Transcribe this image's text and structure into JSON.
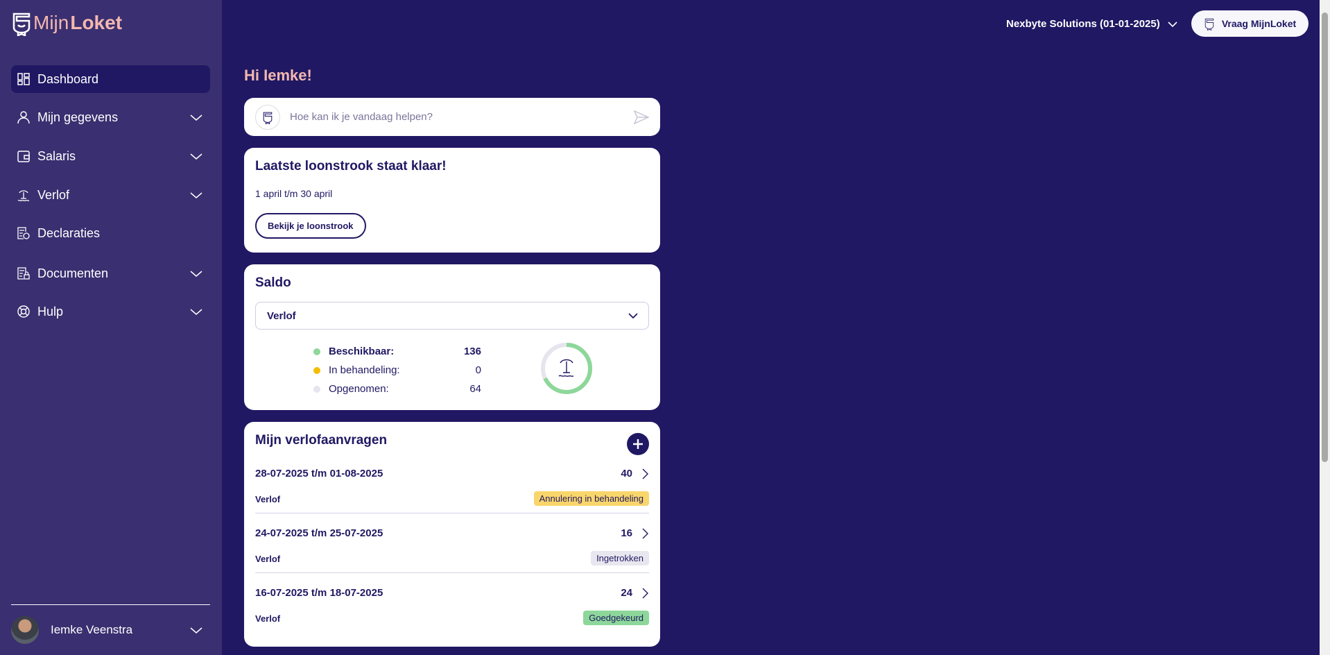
{
  "app": {
    "logo_light": "Mijn",
    "logo_bold": "Loket"
  },
  "sidebar": {
    "items": [
      {
        "label": "Dashboard",
        "icon": "dashboard-icon",
        "active": true
      },
      {
        "label": "Mijn gegevens",
        "icon": "user-icon",
        "expandable": true
      },
      {
        "label": "Salaris",
        "icon": "wallet-icon",
        "expandable": true
      },
      {
        "label": "Verlof",
        "icon": "palm-island-icon",
        "expandable": true
      },
      {
        "label": "Declaraties",
        "icon": "receipt-icon",
        "expandable": false
      },
      {
        "label": "Documenten",
        "icon": "document-lock-icon",
        "expandable": true
      },
      {
        "label": "Hulp",
        "icon": "lifebuoy-icon",
        "expandable": true
      }
    ],
    "user": {
      "name": "Iemke Veenstra"
    }
  },
  "topbar": {
    "company": "Nexbyte Solutions (01-01-2025)",
    "ask_button": "Vraag MijnLoket"
  },
  "main": {
    "greeting": "Hi Iemke!",
    "chat": {
      "placeholder": "Hoe kan ik je vandaag helpen?"
    },
    "payslip": {
      "title": "Laatste loonstrook staat klaar!",
      "period": "1 april t/m 30 april",
      "button": "Bekijk je loonstrook"
    },
    "saldo": {
      "title": "Saldo",
      "selected": "Verlof",
      "rows": [
        {
          "label": "Beschikbaar:",
          "value": "136",
          "color": "#8dd79a"
        },
        {
          "label": "In behandeling:",
          "value": "0",
          "color": "#f5bd00"
        },
        {
          "label": "Opgenomen:",
          "value": "64",
          "color": "#e6e5ee"
        }
      ],
      "available_fraction": 0.68
    },
    "leave": {
      "title": "Mijn verlofaanvragen",
      "requests": [
        {
          "dates": "28-07-2025 t/m 01-08-2025",
          "hours": "40",
          "type": "Verlof",
          "status": "Annulering in behandeling",
          "status_color": "#f9d66b"
        },
        {
          "dates": "24-07-2025 t/m 25-07-2025",
          "hours": "16",
          "type": "Verlof",
          "status": "Ingetrokken",
          "status_color": "#e8e7ef"
        },
        {
          "dates": "16-07-2025 t/m 18-07-2025",
          "hours": "24",
          "type": "Verlof",
          "status": "Goedgekeurd",
          "status_color": "#8dd79a"
        }
      ]
    }
  }
}
